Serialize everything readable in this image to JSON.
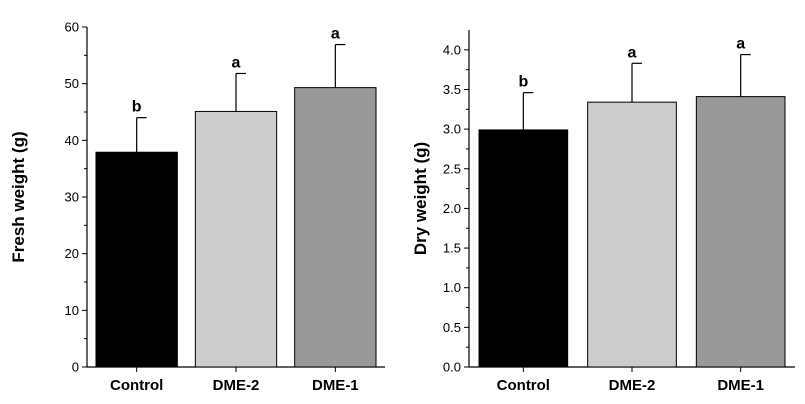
{
  "chart_data": [
    {
      "type": "bar",
      "categories": [
        "Control",
        "DME-2",
        "DME-1"
      ],
      "values": [
        37.9,
        45.1,
        49.3
      ],
      "errors": [
        6.1,
        6.7,
        7.6
      ],
      "significance": [
        "b",
        "a",
        "a"
      ],
      "colors": [
        "#000000",
        "#cccccc",
        "#999999"
      ],
      "xlabel": "",
      "ylabel": "Fresh weight (g)",
      "ylim": [
        0,
        60
      ],
      "yticks": [
        0,
        10,
        20,
        30,
        40,
        50,
        60
      ],
      "ytick_labels": [
        "0",
        "10",
        "20",
        "30",
        "40",
        "50",
        "60"
      ],
      "grid": false
    },
    {
      "type": "bar",
      "categories": [
        "Control",
        "DME-2",
        "DME-1"
      ],
      "values": [
        2.99,
        3.34,
        3.41
      ],
      "errors": [
        0.47,
        0.49,
        0.53
      ],
      "significance": [
        "b",
        "a",
        "a"
      ],
      "colors": [
        "#000000",
        "#cccccc",
        "#999999"
      ],
      "xlabel": "",
      "ylabel": "Dry weight (g)",
      "ylim": [
        0,
        4.25
      ],
      "yticks": [
        0,
        0.5,
        1.0,
        1.5,
        2.0,
        2.5,
        3.0,
        3.5,
        4.0
      ],
      "ytick_labels": [
        "0.0",
        "0.5",
        "1.0",
        "1.5",
        "2.0",
        "2.5",
        "3.0",
        "3.5",
        "4.0"
      ],
      "grid": false
    }
  ]
}
